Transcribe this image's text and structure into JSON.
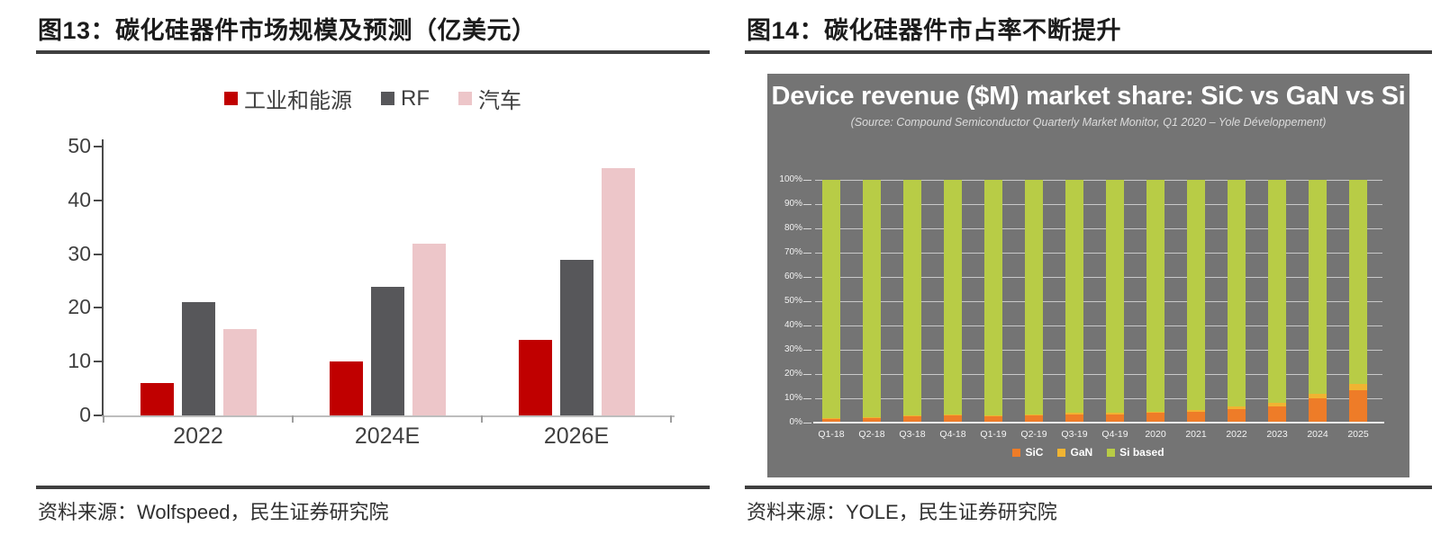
{
  "figure13": {
    "title": "图13：碳化硅器件市场规模及预测（亿美元）",
    "source": "资料来源：Wolfspeed，民生证券研究院"
  },
  "figure14": {
    "title": "图14：碳化硅器件市占率不断提升",
    "source": "资料来源：YOLE，民生证券研究院",
    "panel_title": "Device revenue ($M) market share: SiC vs GaN vs Si",
    "panel_subtitle": "(Source: Compound Semiconductor Quarterly Market Monitor, Q1 2020 – Yole Développement)"
  },
  "colors": {
    "rule": "#3f3f3f",
    "panel_background": "#747474",
    "industry_red": "#c00000",
    "rf_gray": "#57575a",
    "auto_pink": "#edc6c9",
    "sic_orange": "#ee7c28",
    "gan_yellow": "#f0b432",
    "si_green": "#b8cc46"
  },
  "chart_data": [
    {
      "type": "bar",
      "title": "碳化硅器件市场规模及预测（亿美元）",
      "categories": [
        "2022",
        "2024E",
        "2026E"
      ],
      "series": [
        {
          "name": "工业和能源",
          "color": "#c00000",
          "values": [
            6,
            10,
            14
          ]
        },
        {
          "name": "RF",
          "color": "#57575a",
          "values": [
            21,
            24,
            29
          ]
        },
        {
          "name": "汽车",
          "color": "#edc6c9",
          "values": [
            16,
            32,
            46
          ]
        }
      ],
      "xlabel": "",
      "ylabel": "",
      "ylim": [
        0,
        50
      ],
      "yticks": [
        0,
        10,
        20,
        30,
        40,
        50
      ],
      "grid": false,
      "legend_position": "top"
    },
    {
      "type": "bar",
      "stacked": true,
      "title": "Device revenue ($M) market share: SiC vs GaN vs Si",
      "subtitle": "(Source: Compound Semiconductor Quarterly Market Monitor, Q1 2020 – Yole Développement)",
      "categories": [
        "Q1-18",
        "Q2-18",
        "Q3-18",
        "Q4-18",
        "Q1-19",
        "Q2-19",
        "Q3-19",
        "Q4-19",
        "2020",
        "2021",
        "2022",
        "2023",
        "2024",
        "2025"
      ],
      "series": [
        {
          "name": "SiC",
          "color": "#ee7c28",
          "values": [
            1.5,
            2,
            2.5,
            3,
            2.5,
            3,
            3.5,
            3.5,
            4,
            4.5,
            5.5,
            6.5,
            10,
            13.5
          ]
        },
        {
          "name": "GaN",
          "color": "#f0b432",
          "values": [
            0.3,
            0.3,
            0.4,
            0.5,
            0.4,
            0.5,
            0.5,
            0.5,
            0.5,
            0.8,
            1,
            1.5,
            2,
            2.5
          ]
        },
        {
          "name": "Si based",
          "color": "#b8cc46",
          "values": [
            98.2,
            97.7,
            97.1,
            96.5,
            97.1,
            96.5,
            96,
            96,
            95.5,
            94.7,
            93.5,
            92,
            88,
            84
          ]
        }
      ],
      "xlabel": "",
      "ylabel": "",
      "ylim": [
        0,
        100
      ],
      "unit": "%",
      "yticks": [
        "0%",
        "10%",
        "20%",
        "30%",
        "40%",
        "50%",
        "60%",
        "70%",
        "80%",
        "90%",
        "100%"
      ],
      "grid": true,
      "legend_position": "bottom"
    }
  ]
}
